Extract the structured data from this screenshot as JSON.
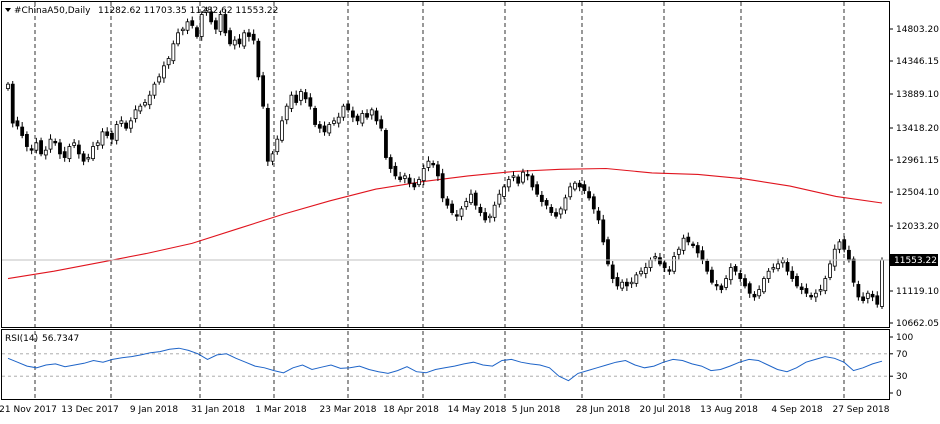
{
  "window": {
    "symbol_header": "#ChinaA50,Daily",
    "ohlc_values": "11282.62 11703.35 11282.62 11553.22"
  },
  "indicator": {
    "label": "RSI(14)",
    "value": "56.7347"
  },
  "colors": {
    "background": "#ffffff",
    "candles": "#000000",
    "moving_average": "#e0141e",
    "rsi_line": "#1e64c8",
    "grid": "#000000",
    "current_price_tag_bg": "#000000",
    "current_price_tag_text": "#ffffff"
  },
  "chart_data": [
    {
      "type": "candlestick",
      "title": "#ChinaA50,Daily",
      "x_tick_labels": [
        "21 Nov 2017",
        "13 Dec 2017",
        "9 Jan 2018",
        "31 Jan 2018",
        "1 Mar 2018",
        "23 Mar 2018",
        "18 Apr 2018",
        "14 May 2018",
        "5 Jun 2018",
        "28 Jun 2018",
        "20 Jul 2018",
        "13 Aug 2018",
        "4 Sep 2018",
        "27 Sep 2018"
      ],
      "y_tick_labels": [
        "14803.20",
        "14346.15",
        "13889.10",
        "13418.20",
        "12961.15",
        "12504.10",
        "12033.20",
        "11119.10",
        "10662.05"
      ],
      "ylim": [
        10662.05,
        14803.2
      ],
      "current_price": "11553.22",
      "grid": "vertical dashed",
      "closes": [
        13950,
        13420,
        13380,
        13250,
        13100,
        13050,
        13150,
        13000,
        13050,
        13200,
        13150,
        13000,
        12950,
        13100,
        13150,
        13000,
        12900,
        12950,
        13100,
        13150,
        13300,
        13250,
        13200,
        13400,
        13450,
        13350,
        13450,
        13600,
        13650,
        13700,
        13800,
        13950,
        14050,
        14200,
        14300,
        14500,
        14650,
        14700,
        14800,
        14750,
        14600,
        14900,
        14950,
        14800,
        14700,
        14900,
        14650,
        14500,
        14550,
        14500,
        14650,
        14600,
        14550,
        14050,
        13650,
        12900,
        13000,
        13200,
        13450,
        13650,
        13800,
        13700,
        13850,
        13750,
        13650,
        13400,
        13350,
        13300,
        13400,
        13450,
        13500,
        13650,
        13600,
        13500,
        13450,
        13550,
        13500,
        13600,
        13450,
        13350,
        12950,
        12800,
        12700,
        12650,
        12700,
        12600,
        12550,
        12650,
        12800,
        12900,
        12850,
        12700,
        12400,
        12300,
        12200,
        12150,
        12250,
        12350,
        12450,
        12300,
        12200,
        12100,
        12150,
        12300,
        12450,
        12550,
        12650,
        12700,
        12600,
        12750,
        12700,
        12550,
        12450,
        12350,
        12300,
        12200,
        12150,
        12250,
        12400,
        12550,
        12600,
        12550,
        12500,
        12400,
        12250,
        12100,
        11800,
        11500,
        11300,
        11200,
        11250,
        11200,
        11250,
        11350,
        11400,
        11450,
        11550,
        11600,
        11500,
        11450,
        11400,
        11600,
        11700,
        11850,
        11800,
        11750,
        11650,
        11550,
        11400,
        11250,
        11200,
        11150,
        11300,
        11450,
        11400,
        11300,
        11200,
        11100,
        11050,
        11150,
        11300,
        11400,
        11450,
        11500,
        11550,
        11400,
        11300,
        11200,
        11150,
        11100,
        11050,
        11100,
        11150,
        11300,
        11500,
        11700,
        11800,
        11700,
        11550,
        11250,
        11050,
        11000,
        11100,
        11050,
        10950,
        11553.22
      ],
      "moving_average": [
        11300,
        11400,
        11520,
        11640,
        11780,
        11980,
        12180,
        12360,
        12520,
        12620,
        12700,
        12760,
        12790,
        12800,
        12740,
        12720,
        12660,
        12560,
        12420,
        12330
      ]
    },
    {
      "type": "line",
      "title": "RSI(14)",
      "y_tick_labels": [
        "100",
        "70",
        "30",
        "0"
      ],
      "ylim": [
        0,
        100
      ],
      "levels": [
        70,
        30
      ],
      "current_value": "56.7347",
      "values": [
        62,
        55,
        48,
        45,
        50,
        52,
        47,
        50,
        53,
        58,
        55,
        60,
        63,
        65,
        68,
        72,
        74,
        78,
        80,
        76,
        70,
        60,
        68,
        70,
        62,
        55,
        48,
        45,
        40,
        36,
        45,
        50,
        42,
        46,
        50,
        44,
        45,
        48,
        42,
        38,
        35,
        40,
        47,
        38,
        36,
        42,
        45,
        48,
        52,
        55,
        50,
        48,
        58,
        60,
        55,
        52,
        50,
        45,
        30,
        22,
        35,
        40,
        45,
        50,
        55,
        58,
        50,
        45,
        48,
        55,
        60,
        58,
        52,
        48,
        40,
        42,
        48,
        55,
        60,
        58,
        50,
        42,
        38,
        45,
        55,
        60,
        65,
        62,
        55,
        40,
        45,
        52,
        56.7347
      ]
    }
  ]
}
